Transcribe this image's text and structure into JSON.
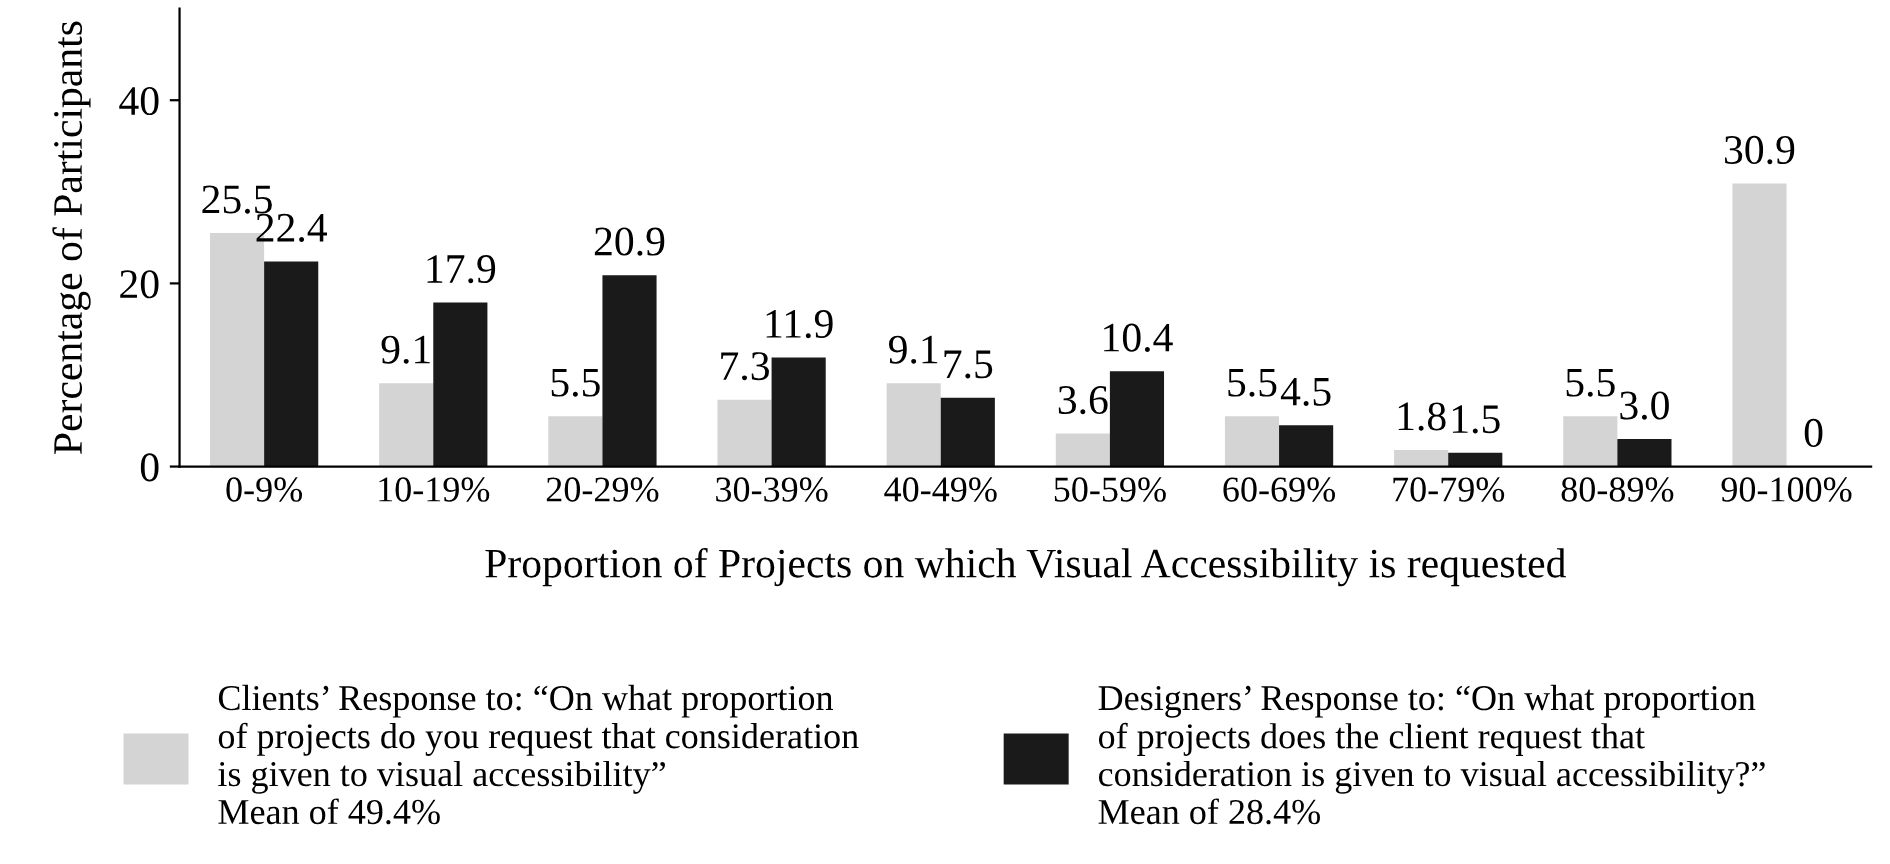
{
  "chart_data": {
    "type": "bar",
    "xlabel": "Proportion of Projects on which Visual Accessibility is requested",
    "ylabel": "Percentage of Participants",
    "categories": [
      "0-9%",
      "10-19%",
      "20-29%",
      "30-39%",
      "40-49%",
      "50-59%",
      "60-69%",
      "70-79%",
      "80-89%",
      "90-100%"
    ],
    "series": [
      {
        "name": "Clients’ Response to: “On what proportion\nof projects do you request that consideration\nis given to visual accessibility”\nMean of 49.4%",
        "color": "#d4d4d4",
        "values": [
          25.5,
          9.1,
          5.5,
          7.3,
          9.1,
          3.6,
          5.5,
          1.8,
          5.5,
          30.9
        ],
        "value_labels": [
          "25.5",
          "9.1",
          "5.5",
          "7.3",
          "9.1",
          "3.6",
          "5.5",
          "1.8",
          "5.5",
          "30.9"
        ]
      },
      {
        "name": "Designers’ Response to: “On what proportion\nof projects does the client request that\nconsideration is given to visual accessibility?”\nMean of 28.4%",
        "color": "#1a1a1a",
        "values": [
          22.4,
          17.9,
          20.9,
          11.9,
          7.5,
          10.4,
          4.5,
          1.5,
          3.0,
          0
        ],
        "value_labels": [
          "22.4",
          "17.9",
          "20.9",
          "11.9",
          "7.5",
          "10.4",
          "4.5",
          "1.5",
          "3.0",
          "0"
        ]
      }
    ],
    "ylim": [
      0,
      50
    ],
    "yticks": [
      0,
      20,
      40
    ],
    "grid": false,
    "legend": "bottom"
  }
}
